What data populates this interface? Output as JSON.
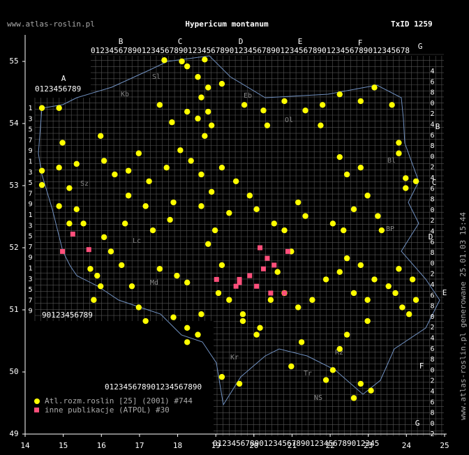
{
  "chart_data": {
    "type": "scatter",
    "title": "Hypericum montanum",
    "subtitle": "TxID 1259",
    "site": "www.atlas-roslin.pl",
    "footer": "www.atlas-roslin.pl generowane 25.01.03 15:44",
    "xlim": [
      14,
      25
    ],
    "ylim": [
      49,
      55
    ],
    "xticks": [
      14,
      15,
      16,
      17,
      18,
      19,
      20,
      21,
      22,
      23,
      24,
      25
    ],
    "yticks": [
      49,
      50,
      51,
      52,
      53,
      54,
      55
    ],
    "grid_letters": [
      "A",
      "B",
      "C",
      "D",
      "E",
      "F",
      "G",
      "B",
      "C",
      "D",
      "E",
      "F",
      "G"
    ],
    "grid_digits": [
      "0123456789",
      "012345678901234567890123456789012345678901234567890123456789012345678",
      "90123456789",
      "012345678901234567890",
      "012345678901234567890123456789012345",
      "13579135791357913579",
      "46802468024680246802468024680246802"
    ],
    "regions": [
      "Sl",
      "Kb",
      "Eb",
      "Ol",
      "Bl",
      "Sz",
      "Lc",
      "Md",
      "BP",
      "Kr",
      "NS",
      "Rz",
      "Tr"
    ],
    "series": [
      {
        "name": "Atl.rozm.roslin [25] (2001) #744",
        "color": "#ffff00",
        "x": [
          17.65,
          18.11,
          18.25,
          18.71,
          18.53,
          18.8,
          18.62,
          18.8,
          18.53,
          18.89,
          18.71,
          17.53,
          17.85,
          18.25,
          19.16,
          19.75,
          20.25,
          20.35,
          20.8,
          21.35,
          21.8,
          21.75,
          22.25,
          22.8,
          23.16,
          23.62,
          23.8,
          23.8,
          23.98,
          24.25,
          23.98,
          14.44,
          14.89,
          14.98,
          14.44,
          14.89,
          15.35,
          14.44,
          15.16,
          14.89,
          15.35,
          15.53,
          15.16,
          15.71,
          15.89,
          15.98,
          15.8,
          16.07,
          15.98,
          16.35,
          16.71,
          16.98,
          17.25,
          17.71,
          18.07,
          18.35,
          18.62,
          17.89,
          17.16,
          16.71,
          16.62,
          17.35,
          17.8,
          16.07,
          16.25,
          16.53,
          16.8,
          16.98,
          17.16,
          17.53,
          17.98,
          18.25,
          17.89,
          18.25,
          18.62,
          18.25,
          18.53,
          18.89,
          19.16,
          19.53,
          19.89,
          19.35,
          18.98,
          18.62,
          18.8,
          19.16,
          19.07,
          19.35,
          19.71,
          20.07,
          20.16,
          19.16,
          19.62,
          20.07,
          20.53,
          20.8,
          21.16,
          21.35,
          20.98,
          20.62,
          20.8,
          21.16,
          21.53,
          21.89,
          22.25,
          22.44,
          22.07,
          22.62,
          22.98,
          23.25,
          23.35,
          22.35,
          22.8,
          22.25,
          22.44,
          22.8,
          23.16,
          23.53,
          23.71,
          23.89,
          24.07,
          24.25,
          24.16,
          23.8,
          22.98,
          22.62,
          22.98,
          22.44,
          22.25,
          21.89,
          22.07,
          22.8,
          23.07,
          22.62,
          21.25,
          20.98,
          19.71,
          20.44
        ],
        "values": [
          55.02,
          55,
          54.92,
          55.03,
          54.75,
          54.58,
          54.42,
          54.19,
          54.08,
          53.97,
          53.8,
          54.3,
          54.02,
          54.19,
          54.64,
          54.3,
          54.21,
          53.97,
          54.36,
          54.21,
          54.3,
          53.97,
          54.47,
          54.36,
          54.58,
          54.3,
          53.69,
          53.52,
          53.12,
          53.07,
          52.96,
          54.25,
          54.25,
          53.69,
          53.24,
          53.29,
          53.35,
          53.01,
          52.96,
          52.67,
          52.62,
          52.39,
          52.39,
          51.66,
          51.55,
          51.38,
          51.16,
          53.4,
          53.8,
          53.18,
          53.24,
          53.52,
          53.07,
          53.29,
          53.57,
          53.4,
          53.18,
          52.73,
          52.67,
          52.84,
          52.39,
          52.28,
          52.45,
          52.17,
          51.94,
          51.72,
          51.38,
          51.04,
          50.82,
          51.66,
          51.55,
          51.44,
          50.88,
          50.71,
          50.93,
          50.48,
          50.6,
          52.9,
          53.29,
          53.07,
          52.84,
          52.56,
          52.28,
          52.67,
          52.06,
          51.72,
          51.27,
          51.16,
          50.82,
          50.6,
          50.71,
          49.92,
          49.81,
          52.62,
          52.39,
          52.28,
          52.73,
          52.51,
          51.94,
          51.61,
          51.27,
          51.04,
          51.16,
          51.49,
          51.61,
          51.83,
          52.39,
          52.62,
          52.84,
          52.51,
          52.28,
          52.28,
          53.29,
          53.46,
          53.18,
          51.72,
          51.49,
          51.38,
          51.27,
          51.04,
          50.93,
          51.16,
          51.49,
          51.66,
          51.16,
          51.27,
          50.82,
          50.6,
          50.37,
          49.87,
          50.03,
          49.81,
          49.7,
          49.58,
          50.48,
          50.09,
          50.93,
          51.16
        ]
      },
      {
        "name": "inne publikacje (ATPOL) #30",
        "color": "#ff4f7b",
        "x": [
          14.98,
          15.25,
          15.67,
          19.02,
          19.62,
          19.89,
          19.53,
          20.07,
          20.16,
          20.35,
          20.25,
          20.53,
          20.89,
          20.44,
          20.8,
          19.62
        ],
        "values": [
          51.94,
          52.22,
          51.97,
          51.49,
          51.49,
          51.55,
          51.38,
          51.38,
          52,
          51.83,
          51.66,
          51.72,
          51.94,
          51.27,
          51.27,
          51.44
        ]
      }
    ]
  }
}
